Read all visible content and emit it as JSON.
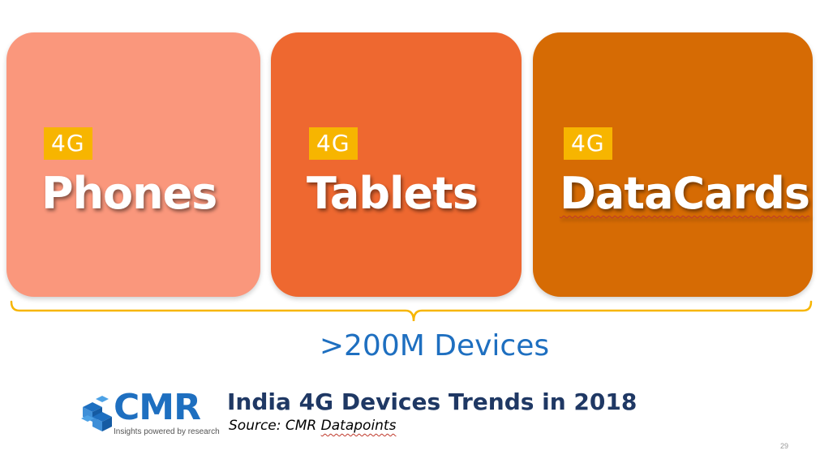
{
  "cards": [
    {
      "badge": "4G",
      "title": "Phones",
      "color": "#fa977c"
    },
    {
      "badge": "4G",
      "title": "Tablets",
      "color": "#ee6830"
    },
    {
      "badge": "4G",
      "title": "DataCards",
      "color": "#d66b04"
    }
  ],
  "badge_color": "#f7b500",
  "bracket_color": "#f7b500",
  "devices_caption": ">200M Devices",
  "logo": {
    "name": "CMR",
    "tagline": "Insights powered by research",
    "color": "#1e6fc0"
  },
  "title": "India 4G Devices Trends in 2018",
  "source": {
    "prefix": "Source:  CMR ",
    "highlight": "Datapoints"
  },
  "page_number": "29"
}
